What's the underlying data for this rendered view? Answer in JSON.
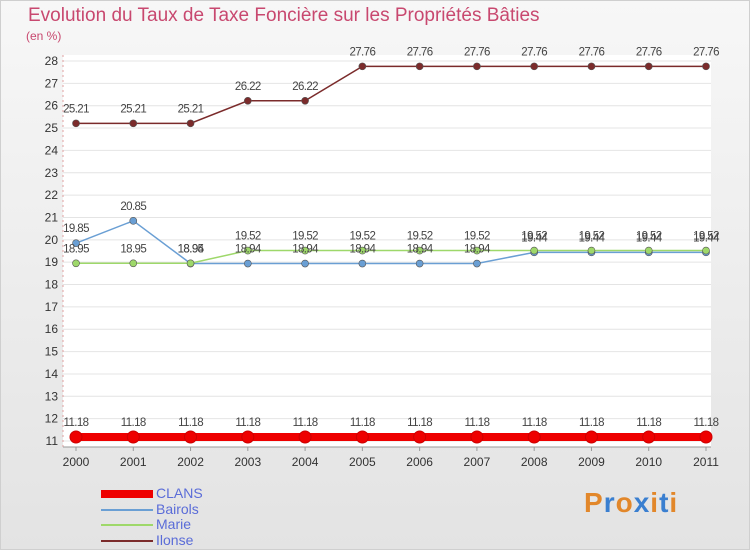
{
  "chart_data": {
    "type": "line",
    "title": "Evolution du Taux de Taxe Foncière sur les Propriétés Bâties",
    "subtitle": "(en %)",
    "x": [
      "2000",
      "2001",
      "2002",
      "2003",
      "2004",
      "2005",
      "2006",
      "2007",
      "2008",
      "2009",
      "2010",
      "2011"
    ],
    "y_ticks": [
      "11",
      "12",
      "13",
      "14",
      "15",
      "16",
      "17",
      "18",
      "19",
      "20",
      "21",
      "22",
      "23",
      "24",
      "25",
      "26",
      "27",
      "28"
    ],
    "ylim": [
      11,
      28
    ],
    "grid": "horizontal",
    "legend_position": "bottom-left",
    "series": [
      {
        "name": "CLANS",
        "color": "#ee0000",
        "values": [
          11.18,
          11.18,
          11.18,
          11.18,
          11.18,
          11.18,
          11.18,
          11.18,
          11.18,
          11.18,
          11.18,
          11.18
        ],
        "labels": [
          "11.18",
          "11.18",
          "11.18",
          "11.18",
          "11.18",
          "11.18",
          "11.18",
          "11.18",
          "11.18",
          "11.18",
          "11.18",
          "11.18"
        ]
      },
      {
        "name": "Bairols",
        "color": "#6a9fd4",
        "values": [
          19.85,
          20.85,
          18.94,
          18.94,
          18.94,
          18.94,
          18.94,
          18.94,
          19.44,
          19.44,
          19.44,
          19.44
        ],
        "labels": [
          "19.85",
          "20.85",
          "18.94",
          "18.94",
          "18.94",
          "18.94",
          "18.94",
          "18.94",
          "19.44",
          "19.44",
          "19.44",
          "19.44"
        ]
      },
      {
        "name": "Marie",
        "color": "#9ed86a",
        "values": [
          18.95,
          18.95,
          18.95,
          19.52,
          19.52,
          19.52,
          19.52,
          19.52,
          19.52,
          19.52,
          19.52,
          19.52
        ],
        "labels": [
          "18.95",
          "18.95",
          "18.95",
          "19.52",
          "19.52",
          "19.52",
          "19.52",
          "19.52",
          "19.52",
          "19.52",
          "19.52",
          "19.52"
        ]
      },
      {
        "name": "Ilonse",
        "color": "#7b2b2b",
        "values": [
          25.21,
          25.21,
          25.21,
          26.22,
          26.22,
          27.76,
          27.76,
          27.76,
          27.76,
          27.76,
          27.76,
          27.76
        ],
        "labels": [
          "25.21",
          "25.21",
          "25.21",
          "26.22",
          "26.22",
          "27.76",
          "27.76",
          "27.76",
          "27.76",
          "27.76",
          "27.76",
          "27.76"
        ]
      }
    ]
  },
  "logo": {
    "text": "Proxiti",
    "colors": [
      "#e2872a",
      "#3a7fd0",
      "#e2872a",
      "#3a7fd0",
      "#e2872a",
      "#3a7fd0",
      "#e2872a"
    ]
  }
}
